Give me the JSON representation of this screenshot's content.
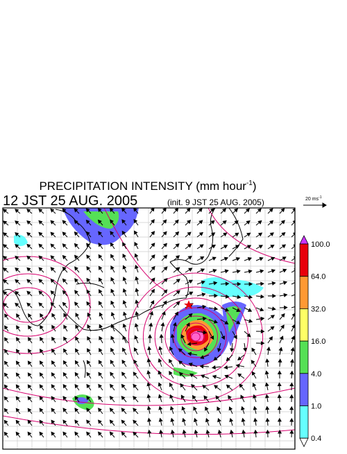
{
  "title": {
    "text": "PRECIPITATION INTENSITY (mm hour",
    "superscript": "-1",
    "close": ")"
  },
  "valid_time": "12 JST 25 AUG. 2005",
  "init_time": "(init. 9 JST 25 AUG. 2005)",
  "reference_vector": {
    "text": "20 ms",
    "superscript": "-1"
  },
  "colorbar": {
    "levels": [
      {
        "value": 100,
        "label": "100.0"
      },
      {
        "value": 64,
        "label": "64.0"
      },
      {
        "value": 32,
        "label": "32.0"
      },
      {
        "value": 16,
        "label": "16.0"
      },
      {
        "value": 4,
        "label": "4.0"
      },
      {
        "value": 1,
        "label": "1.0"
      },
      {
        "value": 0.4,
        "label": "0.4"
      }
    ],
    "colors": [
      "#e8000b",
      "#ff9933",
      "#ffff66",
      "#55e055",
      "#6666ff",
      "#66ffff"
    ],
    "over_color": "#cc33ff"
  }
}
